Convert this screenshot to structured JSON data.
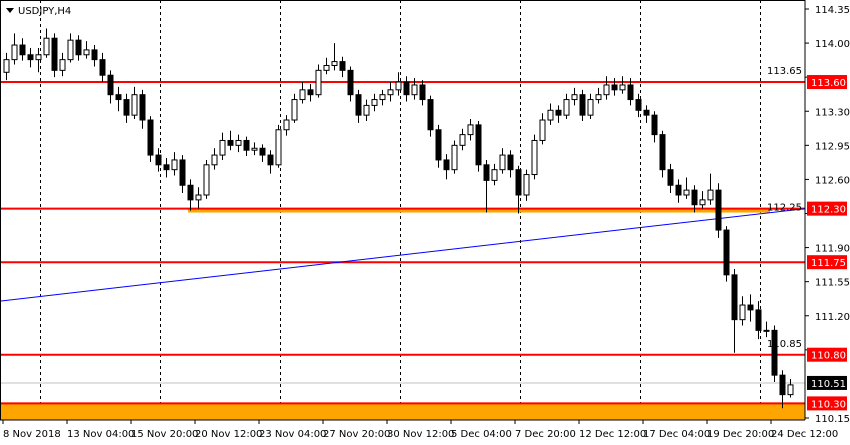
{
  "header": {
    "symbol_label": "USDJPY,H4"
  },
  "colors": {
    "bull_body": "#ffffff",
    "bear_body": "#000000",
    "candle_outline": "#000000",
    "level_line": "#ff0000",
    "zone": "#ffa500",
    "trendline": "#0000ff",
    "bid_line": "#c0c0c0",
    "bid_label_bg": "#000000"
  },
  "chart_data": {
    "type": "candlestick",
    "symbol": "USDJPY",
    "timeframe": "H4",
    "ylim": [
      110.15,
      114.35
    ],
    "grid": "vertical dashed",
    "y_ticks": [
      "114.35",
      "114.00",
      "113.65",
      "113.30",
      "112.95",
      "112.60",
      "112.25",
      "111.90",
      "111.55",
      "111.20",
      "110.85",
      "110.15"
    ],
    "x_ticks": [
      "8 Nov 2018",
      "13 Nov 04:00",
      "15 Nov 20:00",
      "20 Nov 12:00",
      "23 Nov 04:00",
      "27 Nov 20:00",
      "30 Nov 12:00",
      "5 Dec 04:00",
      "7 Dec 20:00",
      "12 Dec 12:00",
      "17 Dec 04:00",
      "19 Dec 20:00",
      "24 Dec 12:00"
    ],
    "levels": [
      {
        "price": 113.6,
        "label": "113.60"
      },
      {
        "price": 112.3,
        "label": "112.30"
      },
      {
        "price": 111.75,
        "label": "111.75"
      },
      {
        "price": 110.8,
        "label": "110.80"
      },
      {
        "price": 110.3,
        "label": "110.30"
      }
    ],
    "bid": {
      "price": 110.51,
      "label": "110.51"
    },
    "zones": [
      {
        "from_price": 112.26,
        "to_price": 112.3,
        "start_candle": 23,
        "end_candle": 95
      },
      {
        "from_price": 110.15,
        "to_price": 110.3,
        "start_candle": 0,
        "end_candle": 98
      }
    ],
    "trendline": {
      "start": {
        "candle": 0,
        "price": 111.35
      },
      "end": {
        "candle": 98,
        "price": 112.3
      }
    },
    "candles_ohlc": [
      [
        113.7,
        113.9,
        113.62,
        113.83
      ],
      [
        113.83,
        114.1,
        113.78,
        113.98
      ],
      [
        113.98,
        114.05,
        113.82,
        113.88
      ],
      [
        113.88,
        113.95,
        113.75,
        113.83
      ],
      [
        113.83,
        113.95,
        113.7,
        113.88
      ],
      [
        113.88,
        114.15,
        113.85,
        114.05
      ],
      [
        114.05,
        114.1,
        113.65,
        113.72
      ],
      [
        113.72,
        113.9,
        113.66,
        113.83
      ],
      [
        113.83,
        114.1,
        113.8,
        114.03
      ],
      [
        114.03,
        114.08,
        113.82,
        113.88
      ],
      [
        113.88,
        114.02,
        113.84,
        113.93
      ],
      [
        113.93,
        113.98,
        113.76,
        113.83
      ],
      [
        113.83,
        113.9,
        113.6,
        113.67
      ],
      [
        113.67,
        113.72,
        113.38,
        113.47
      ],
      [
        113.47,
        113.55,
        113.3,
        113.42
      ],
      [
        113.42,
        113.48,
        113.18,
        113.26
      ],
      [
        113.26,
        113.55,
        113.22,
        113.47
      ],
      [
        113.47,
        113.52,
        113.12,
        113.21
      ],
      [
        113.21,
        113.25,
        112.78,
        112.85
      ],
      [
        112.85,
        112.92,
        112.68,
        112.75
      ],
      [
        112.75,
        112.82,
        112.62,
        112.7
      ],
      [
        112.7,
        112.88,
        112.64,
        112.8
      ],
      [
        112.8,
        112.85,
        112.46,
        112.54
      ],
      [
        112.54,
        112.6,
        112.28,
        112.39
      ],
      [
        112.39,
        112.52,
        112.3,
        112.44
      ],
      [
        112.44,
        112.8,
        112.4,
        112.75
      ],
      [
        112.75,
        112.92,
        112.7,
        112.85
      ],
      [
        112.85,
        113.08,
        112.8,
        113.0
      ],
      [
        113.0,
        113.1,
        112.9,
        112.95
      ],
      [
        112.95,
        113.06,
        112.88,
        113.0
      ],
      [
        113.0,
        113.04,
        112.84,
        112.9
      ],
      [
        112.9,
        112.98,
        112.85,
        112.92
      ],
      [
        112.92,
        112.96,
        112.78,
        112.85
      ],
      [
        112.85,
        112.9,
        112.66,
        112.75
      ],
      [
        112.75,
        113.16,
        112.72,
        113.11
      ],
      [
        113.11,
        113.26,
        113.05,
        113.21
      ],
      [
        113.21,
        113.48,
        113.18,
        113.42
      ],
      [
        113.42,
        113.6,
        113.38,
        113.52
      ],
      [
        113.52,
        113.58,
        113.4,
        113.47
      ],
      [
        113.47,
        113.78,
        113.44,
        113.72
      ],
      [
        113.72,
        113.85,
        113.68,
        113.77
      ],
      [
        113.77,
        114.0,
        113.72,
        113.81
      ],
      [
        113.81,
        113.86,
        113.65,
        113.72
      ],
      [
        113.72,
        113.76,
        113.4,
        113.47
      ],
      [
        113.47,
        113.52,
        113.18,
        113.26
      ],
      [
        113.26,
        113.42,
        113.2,
        113.36
      ],
      [
        113.36,
        113.48,
        113.3,
        113.42
      ],
      [
        113.42,
        113.52,
        113.36,
        113.47
      ],
      [
        113.47,
        113.6,
        113.4,
        113.52
      ],
      [
        113.52,
        113.7,
        113.46,
        113.6
      ],
      [
        113.6,
        113.66,
        113.4,
        113.47
      ],
      [
        113.47,
        113.64,
        113.42,
        113.57
      ],
      [
        113.57,
        113.62,
        113.36,
        113.42
      ],
      [
        113.42,
        113.46,
        113.04,
        113.11
      ],
      [
        113.11,
        113.16,
        112.72,
        112.8
      ],
      [
        112.8,
        112.86,
        112.6,
        112.7
      ],
      [
        112.7,
        113.0,
        112.66,
        112.95
      ],
      [
        112.95,
        113.12,
        112.9,
        113.06
      ],
      [
        113.06,
        113.22,
        113.0,
        113.16
      ],
      [
        113.16,
        113.2,
        112.68,
        112.75
      ],
      [
        112.75,
        112.8,
        112.26,
        112.59
      ],
      [
        112.59,
        112.76,
        112.54,
        112.7
      ],
      [
        112.7,
        112.92,
        112.66,
        112.85
      ],
      [
        112.85,
        112.9,
        112.62,
        112.7
      ],
      [
        112.7,
        112.74,
        112.25,
        112.44
      ],
      [
        112.44,
        112.7,
        112.38,
        112.65
      ],
      [
        112.65,
        113.06,
        112.6,
        113.0
      ],
      [
        113.0,
        113.28,
        112.96,
        113.21
      ],
      [
        113.21,
        113.38,
        113.16,
        113.31
      ],
      [
        113.31,
        113.36,
        113.18,
        113.26
      ],
      [
        113.26,
        113.48,
        113.22,
        113.42
      ],
      [
        113.42,
        113.54,
        113.36,
        113.47
      ],
      [
        113.47,
        113.52,
        113.2,
        113.26
      ],
      [
        113.26,
        113.48,
        113.22,
        113.42
      ],
      [
        113.42,
        113.54,
        113.38,
        113.47
      ],
      [
        113.47,
        113.66,
        113.42,
        113.57
      ],
      [
        113.57,
        113.64,
        113.46,
        113.52
      ],
      [
        113.52,
        113.66,
        113.48,
        113.57
      ],
      [
        113.57,
        113.64,
        113.36,
        113.42
      ],
      [
        113.42,
        113.48,
        113.24,
        113.31
      ],
      [
        113.31,
        113.36,
        113.18,
        113.26
      ],
      [
        113.26,
        113.3,
        112.98,
        113.06
      ],
      [
        113.06,
        113.1,
        112.62,
        112.7
      ],
      [
        112.7,
        112.76,
        112.46,
        112.54
      ],
      [
        112.54,
        112.6,
        112.36,
        112.44
      ],
      [
        112.44,
        112.62,
        112.4,
        112.49
      ],
      [
        112.49,
        112.54,
        112.26,
        112.34
      ],
      [
        112.34,
        112.48,
        112.3,
        112.39
      ],
      [
        112.39,
        112.66,
        112.34,
        112.49
      ],
      [
        112.49,
        112.56,
        112.0,
        112.08
      ],
      [
        112.08,
        112.12,
        111.55,
        111.62
      ],
      [
        111.62,
        111.68,
        110.82,
        111.16
      ],
      [
        111.16,
        111.4,
        111.1,
        111.31
      ],
      [
        111.31,
        111.42,
        111.14,
        111.26
      ],
      [
        111.26,
        111.35,
        110.96,
        111.05
      ],
      [
        111.05,
        111.14,
        110.98,
        111.05
      ],
      [
        111.05,
        111.1,
        110.52,
        110.59
      ],
      [
        110.59,
        110.64,
        110.25,
        110.39
      ],
      [
        110.39,
        110.55,
        110.36,
        110.49
      ]
    ]
  }
}
